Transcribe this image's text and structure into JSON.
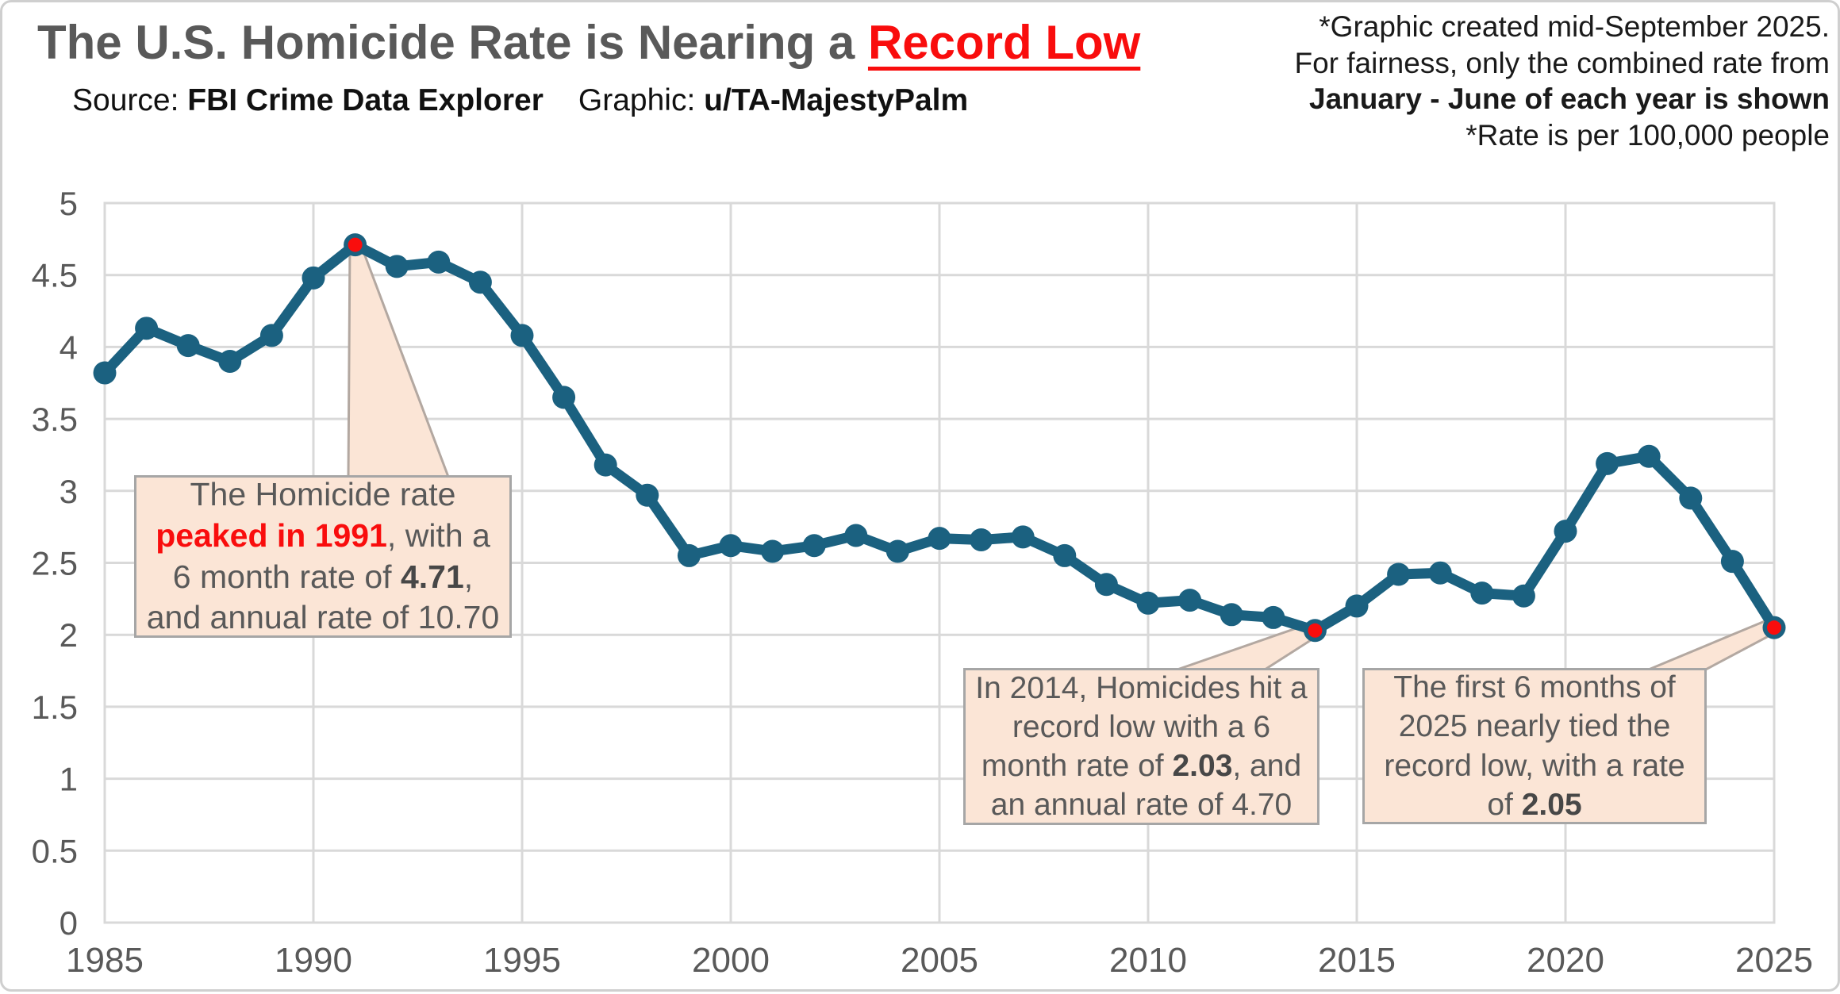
{
  "title": {
    "main": "The U.S. Homicide Rate is Nearing a ",
    "highlight": "Record Low"
  },
  "source": {
    "label": "Source:",
    "value": "FBI Crime Data Explorer",
    "graphic_label": "Graphic:",
    "graphic_value": "u/TA-MajestyPalm"
  },
  "footnote": {
    "line1": "*Graphic created mid-September 2025.",
    "line2": "For fairness, only the combined rate from",
    "line3": "January - June of each year is shown",
    "line4": "*Rate is per 100,000 people"
  },
  "annotations": {
    "peak": {
      "text1": "The Homicide rate ",
      "red": "peaked in 1991",
      "text2": ", with a 6 month rate of ",
      "bold": "4.71",
      "text3": ", and annual rate of 10.70"
    },
    "low2014": {
      "text1": "In 2014, Homicides hit a record low with a 6 month rate of ",
      "bold": "2.03",
      "text2": ", and an annual rate of 4.70"
    },
    "low2025": {
      "text1": "The first 6 months of 2025 nearly tied the record low, with a rate of ",
      "bold": "2.05"
    }
  },
  "chart_data": {
    "type": "line",
    "title": "U.S. 6-month (Jan-June) homicide rate per 100,000 people",
    "x": [
      1985,
      1986,
      1987,
      1988,
      1989,
      1990,
      1991,
      1992,
      1993,
      1994,
      1995,
      1996,
      1997,
      1998,
      1999,
      2000,
      2001,
      2002,
      2003,
      2004,
      2005,
      2006,
      2007,
      2008,
      2009,
      2010,
      2011,
      2012,
      2013,
      2014,
      2015,
      2016,
      2017,
      2018,
      2019,
      2020,
      2021,
      2022,
      2023,
      2024,
      2025
    ],
    "series": [
      {
        "name": "6-month homicide rate",
        "values": [
          3.82,
          4.13,
          4.01,
          3.9,
          4.08,
          4.48,
          4.71,
          4.56,
          4.59,
          4.45,
          4.08,
          3.65,
          3.18,
          2.97,
          2.55,
          2.62,
          2.58,
          2.62,
          2.69,
          2.58,
          2.67,
          2.66,
          2.68,
          2.55,
          2.35,
          2.22,
          2.24,
          2.14,
          2.12,
          2.03,
          2.2,
          2.42,
          2.43,
          2.29,
          2.27,
          2.72,
          3.19,
          3.24,
          2.95,
          2.51,
          2.05
        ]
      }
    ],
    "highlight_points": [
      {
        "year": 1991,
        "value": 4.71
      },
      {
        "year": 2014,
        "value": 2.03
      },
      {
        "year": 2025,
        "value": 2.05
      }
    ],
    "xlabel": "",
    "ylabel": "",
    "ylim": [
      0,
      5
    ],
    "y_ticks": [
      "0",
      "0.5",
      "1",
      "1.5",
      "2",
      "2.5",
      "3",
      "3.5",
      "4",
      "4.5",
      "5"
    ],
    "x_ticks": [
      "1985",
      "1990",
      "1995",
      "2000",
      "2005",
      "2010",
      "2015",
      "2020",
      "2025"
    ],
    "grid": true,
    "legend": "none",
    "colors": {
      "line": "#1b6180",
      "highlight": "#f90d0d",
      "grid": "#d9d9d9",
      "axis_text": "#595959",
      "callout_fill": "#fbe5d6",
      "callout_border": "#a6a6a6"
    }
  }
}
